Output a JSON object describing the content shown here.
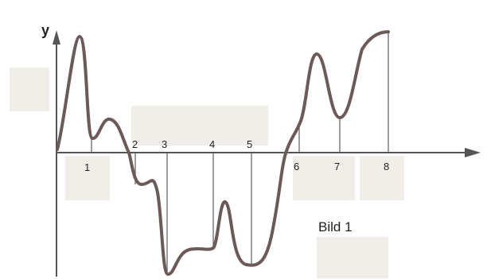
{
  "axis": {
    "y_label": "y"
  },
  "points": [
    "1",
    "2",
    "3",
    "4",
    "5",
    "6",
    "7",
    "8"
  ],
  "caption": "Bild 1",
  "colors": {
    "curve": "#6b5a57",
    "axis": "#555555",
    "shading": "#f1eee9"
  }
}
